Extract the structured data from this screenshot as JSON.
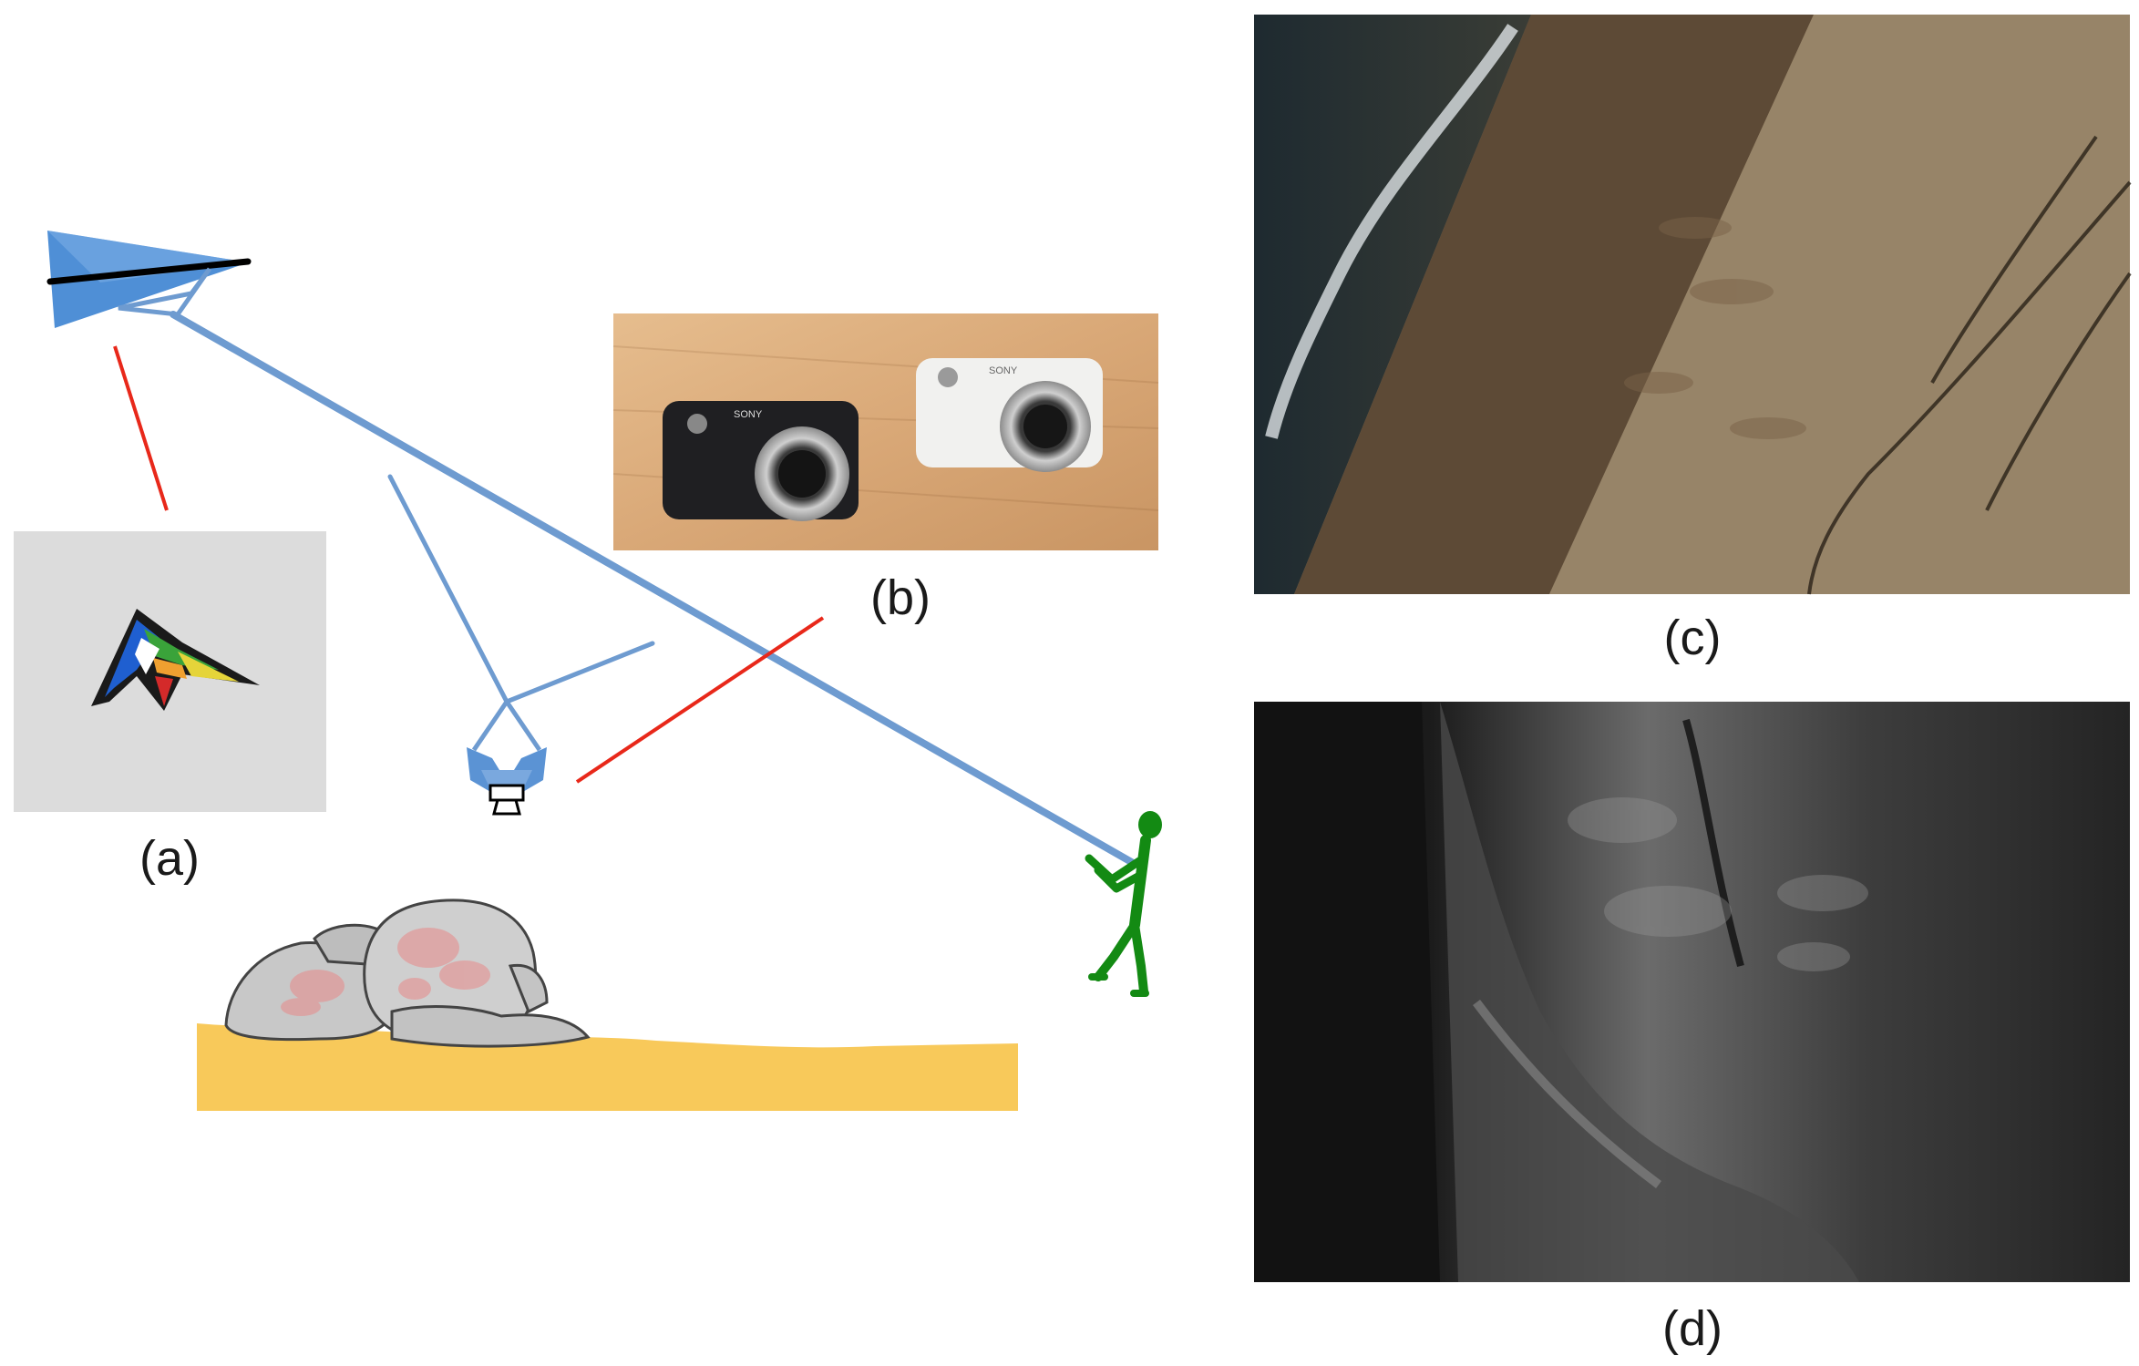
{
  "panels": {
    "a": {
      "label": "(a)"
    },
    "b": {
      "label": "(b)",
      "camera_brand": "SONY"
    },
    "c": {
      "label": "(c)"
    },
    "d": {
      "label": "(d)"
    }
  },
  "colors": {
    "kite_blue": "#4f8fd6",
    "tether": "#6e9bd0",
    "callout_red": "#e8281a",
    "person_green": "#138a13",
    "sand": "#f8c95a",
    "rock_grey": "#c8c8c8",
    "lichen_pink": "#e88a8a"
  }
}
